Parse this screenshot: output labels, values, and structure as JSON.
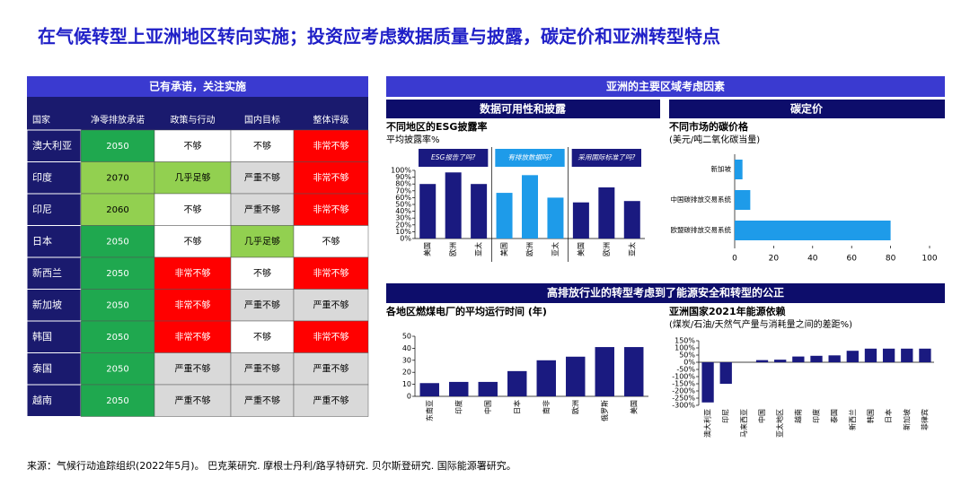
{
  "title": "在气候转型上亚洲地区转向实施；投资应考虑数据质量与披露，碳定价和亚洲转型特点",
  "table": {
    "header": "已有承诺，关注实施",
    "columns": [
      "国家",
      "净零排放承诺",
      "政策与行动",
      "国内目标",
      "整体评级"
    ],
    "rows": [
      [
        "澳大利亚",
        {
          "text": "2050",
          "fill": "#1fa84f",
          "text_color": "#ffffff"
        },
        {
          "text": "不够",
          "fill": "#ffffff",
          "text_color": "#000000"
        },
        {
          "text": "不够",
          "fill": "#ffffff",
          "text_color": "#000000"
        },
        {
          "text": "非常不够",
          "fill": "#ff0000",
          "text_color": "#ffffff"
        }
      ],
      [
        "印度",
        {
          "text": "2070",
          "fill": "#92d050",
          "text_color": "#000000"
        },
        {
          "text": "几乎足够",
          "fill": "#92d050",
          "text_color": "#000000"
        },
        {
          "text": "严重不够",
          "fill": "#d9d9d9",
          "text_color": "#000000"
        },
        {
          "text": "非常不够",
          "fill": "#ff0000",
          "text_color": "#ffffff"
        }
      ],
      [
        "印尼",
        {
          "text": "2060",
          "fill": "#92d050",
          "text_color": "#000000"
        },
        {
          "text": "不够",
          "fill": "#ffffff",
          "text_color": "#000000"
        },
        {
          "text": "严重不够",
          "fill": "#d9d9d9",
          "text_color": "#000000"
        },
        {
          "text": "非常不够",
          "fill": "#ff0000",
          "text_color": "#ffffff"
        }
      ],
      [
        "日本",
        {
          "text": "2050",
          "fill": "#1fa84f",
          "text_color": "#ffffff"
        },
        {
          "text": "不够",
          "fill": "#ffffff",
          "text_color": "#000000"
        },
        {
          "text": "几乎足够",
          "fill": "#92d050",
          "text_color": "#000000"
        },
        {
          "text": "不够",
          "fill": "#ffffff",
          "text_color": "#000000"
        }
      ],
      [
        "新西兰",
        {
          "text": "2050",
          "fill": "#1fa84f",
          "text_color": "#ffffff"
        },
        {
          "text": "非常不够",
          "fill": "#ff0000",
          "text_color": "#ffffff"
        },
        {
          "text": "不够",
          "fill": "#ffffff",
          "text_color": "#000000"
        },
        {
          "text": "非常不够",
          "fill": "#ff0000",
          "text_color": "#ffffff"
        }
      ],
      [
        "新加坡",
        {
          "text": "2050",
          "fill": "#1fa84f",
          "text_color": "#ffffff"
        },
        {
          "text": "非常不够",
          "fill": "#ff0000",
          "text_color": "#ffffff"
        },
        {
          "text": "严重不够",
          "fill": "#d9d9d9",
          "text_color": "#000000"
        },
        {
          "text": "严重不够",
          "fill": "#d9d9d9",
          "text_color": "#000000"
        }
      ],
      [
        "韩国",
        {
          "text": "2050",
          "fill": "#1fa84f",
          "text_color": "#ffffff"
        },
        {
          "text": "非常不够",
          "fill": "#ff0000",
          "text_color": "#ffffff"
        },
        {
          "text": "不够",
          "fill": "#ffffff",
          "text_color": "#000000"
        },
        {
          "text": "非常不够",
          "fill": "#ff0000",
          "text_color": "#ffffff"
        }
      ],
      [
        "泰国",
        {
          "text": "2050",
          "fill": "#1fa84f",
          "text_color": "#ffffff"
        },
        {
          "text": "严重不够",
          "fill": "#d9d9d9",
          "text_color": "#000000"
        },
        {
          "text": "严重不够",
          "fill": "#d9d9d9",
          "text_color": "#000000"
        },
        {
          "text": "严重不够",
          "fill": "#d9d9d9",
          "text_color": "#000000"
        }
      ],
      [
        "越南",
        {
          "text": "2050",
          "fill": "#1fa84f",
          "text_color": "#ffffff"
        },
        {
          "text": "严重不够",
          "fill": "#d9d9d9",
          "text_color": "#000000"
        },
        {
          "text": "严重不够",
          "fill": "#d9d9d9",
          "text_color": "#000000"
        },
        {
          "text": "严重不够",
          "fill": "#d9d9d9",
          "text_color": "#000000"
        }
      ]
    ]
  },
  "panels": {
    "region_header": "亚洲的主要区域考虑因素",
    "data_header": "数据可用性和披露",
    "carbon_header": "碳定价",
    "transition_header": "高排放行业的转型考虑到了能源安全和转型的公正"
  },
  "chart_data": [
    {
      "type": "panel_bar",
      "title": "不同地区的ESG披露率",
      "subtitle": "平均披露率%",
      "categories": [
        "美国",
        "欧洲",
        "亚太"
      ],
      "series": [
        {
          "name": "ESG报告了吗?",
          "color": "#1a1a80",
          "values": [
            80,
            97,
            80
          ]
        },
        {
          "name": "有排放数据吗?",
          "color": "#1e9be9",
          "values": [
            67,
            93,
            60
          ]
        },
        {
          "name": "采用国际标准了吗?",
          "color": "#1a1a80",
          "values": [
            53,
            75,
            55
          ]
        }
      ],
      "ylim": [
        0,
        100
      ],
      "yticks": [
        {
          "value": 0,
          "label": "0%"
        },
        {
          "value": 10,
          "label": "10%"
        },
        {
          "value": 20,
          "label": "20%"
        },
        {
          "value": 30,
          "label": "30%"
        },
        {
          "value": 40,
          "label": "40%"
        },
        {
          "value": 50,
          "label": "50%"
        },
        {
          "value": 60,
          "label": "60%"
        },
        {
          "value": 70,
          "label": "70%"
        },
        {
          "value": 80,
          "label": "80%"
        },
        {
          "value": 90,
          "label": "90%"
        },
        {
          "value": 100,
          "label": "100%"
        }
      ]
    },
    {
      "type": "barh",
      "title": "不同市场的碳价格",
      "subtitle": "(美元/吨二氧化碳当量)",
      "categories": [
        "新加坡",
        "中国碳排放交易系统",
        "欧盟碳排放交易系统"
      ],
      "values": [
        4,
        8,
        80
      ],
      "color": "#1e9be9",
      "xlim": [
        0,
        100
      ],
      "xticks": [
        0,
        20,
        40,
        60,
        80,
        100
      ]
    },
    {
      "type": "bar",
      "title": "各地区燃煤电厂的平均运行时间 (年)",
      "categories": [
        "东南亚",
        "印度",
        "中国",
        "日本",
        "南非",
        "欧洲",
        "俄罗斯",
        "美国"
      ],
      "values": [
        11,
        12,
        12,
        21,
        30,
        33,
        41,
        41
      ],
      "color": "#1a1a80",
      "ylim": [
        0,
        50
      ],
      "yticks": [
        0,
        10,
        20,
        30,
        40,
        50
      ]
    },
    {
      "type": "bar",
      "title": "亚洲国家2021年能源依赖",
      "subtitle": "(煤炭/石油/天然气产量与消耗量之间的差距%)",
      "categories": [
        "澳大利亚",
        "印尼",
        "马来西亚",
        "中国",
        "亚太地区",
        "越南",
        "印度",
        "泰国",
        "新西兰",
        "韩国",
        "日本",
        "新加坡",
        "菲律宾"
      ],
      "values": [
        -280,
        -150,
        0,
        15,
        18,
        40,
        45,
        48,
        80,
        95,
        95,
        95,
        95
      ],
      "color": "#1a1a80",
      "ylim": [
        -300,
        150
      ],
      "yticks": [
        {
          "value": -300,
          "label": "-300%"
        },
        {
          "value": -250,
          "label": "-250%"
        },
        {
          "value": -200,
          "label": "-200%"
        },
        {
          "value": -150,
          "label": "-150%"
        },
        {
          "value": -100,
          "label": "-100%"
        },
        {
          "value": -50,
          "label": "-50%"
        },
        {
          "value": 0,
          "label": "0%"
        },
        {
          "value": 50,
          "label": "50%"
        },
        {
          "value": 100,
          "label": "100%"
        },
        {
          "value": 150,
          "label": "150%"
        }
      ]
    }
  ],
  "source": "来源：气候行动追踪组织(2022年5月)。 巴克莱研究. 摩根士丹利/路孚特研究. 贝尔斯登研究. 国际能源署研究。"
}
